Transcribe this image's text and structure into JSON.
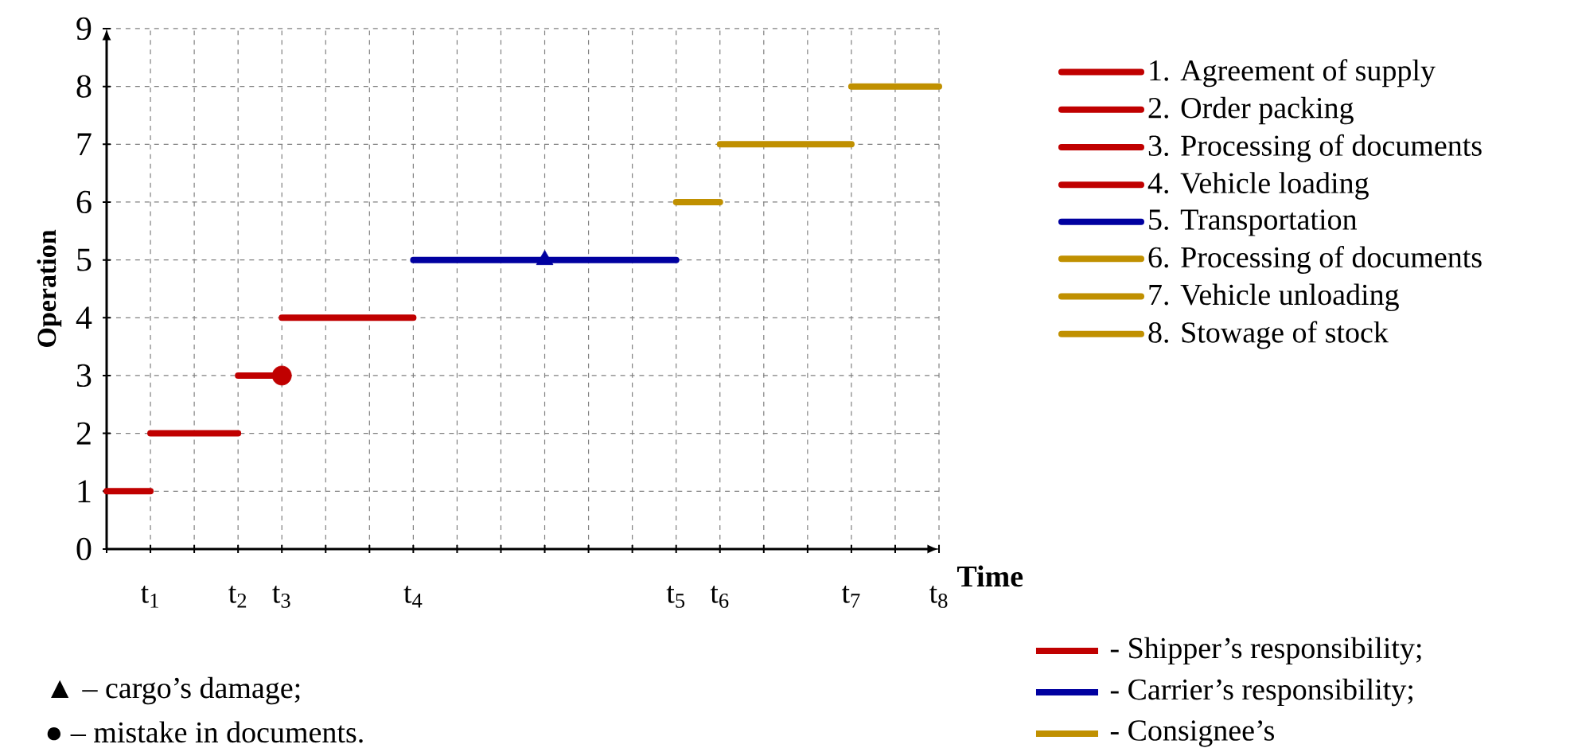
{
  "chart_data": {
    "type": "line",
    "xlabel": "Time",
    "ylabel": "Operation",
    "categories": [
      null,
      "t$_{1}$",
      null,
      "t$_{2}$",
      "t$_{3}$",
      null,
      null,
      "t$_{4}$",
      null,
      null,
      null,
      null,
      null,
      "t$_{5}$",
      "t$_{6}$",
      null,
      null,
      "t$_{7}$",
      null,
      "t$_{8}$"
    ],
    "ylim": [
      0,
      9
    ],
    "yticks": [
      0,
      1,
      2,
      3,
      4,
      5,
      6,
      7,
      8,
      9
    ],
    "grid": true,
    "legend": "right",
    "series": [
      {
        "name": "1. Agreement of supply",
        "color": "#c00000",
        "values": [
          1,
          1,
          null,
          null,
          null,
          null,
          null,
          null,
          null,
          null,
          null,
          null,
          null,
          null,
          null,
          null,
          null,
          null,
          null,
          null
        ]
      },
      {
        "name": "2. Order packing",
        "color": "#c00000",
        "values": [
          null,
          2,
          2,
          2,
          null,
          null,
          null,
          null,
          null,
          null,
          null,
          null,
          null,
          null,
          null,
          null,
          null,
          null,
          null,
          null
        ]
      },
      {
        "name": "3. Processing of documents",
        "color": "#c00000",
        "values": [
          null,
          null,
          null,
          3,
          3,
          null,
          null,
          null,
          null,
          null,
          null,
          null,
          null,
          null,
          null,
          null,
          null,
          null,
          null,
          null
        ]
      },
      {
        "name": "4. Vehicle loading",
        "color": "#c00000",
        "values": [
          null,
          null,
          null,
          null,
          4,
          4,
          4,
          4,
          null,
          null,
          null,
          null,
          null,
          null,
          null,
          null,
          null,
          null,
          null,
          null
        ]
      },
      {
        "name": "5. Transportation",
        "color": "#0000a0",
        "values": [
          null,
          null,
          null,
          null,
          null,
          null,
          null,
          5,
          5,
          5,
          5,
          5,
          5,
          5,
          null,
          null,
          null,
          null,
          null,
          null
        ]
      },
      {
        "name": "6. Processing of documents",
        "color": "#c09000",
        "values": [
          null,
          null,
          null,
          null,
          null,
          null,
          null,
          null,
          null,
          null,
          null,
          null,
          null,
          6,
          6,
          null,
          null,
          null,
          null,
          null
        ]
      },
      {
        "name": "7. Vehicle unloading",
        "color": "#c09000",
        "values": [
          null,
          null,
          null,
          null,
          null,
          null,
          null,
          null,
          null,
          null,
          null,
          null,
          null,
          null,
          7,
          7,
          7,
          7,
          null,
          null
        ]
      },
      {
        "name": "8. Stowage of stock",
        "color": "#c09000",
        "values": [
          null,
          null,
          null,
          null,
          null,
          null,
          null,
          null,
          null,
          null,
          null,
          null,
          null,
          null,
          null,
          null,
          null,
          8,
          8,
          8
        ]
      },
      {
        "type": "scatter",
        "marker": "triangle",
        "color": "#0000a0",
        "values": [
          null,
          null,
          null,
          null,
          null,
          null,
          null,
          null,
          null,
          null,
          5,
          null,
          null,
          null,
          null,
          null,
          null,
          null,
          null,
          null
        ]
      },
      {
        "type": "scatter",
        "marker": "circle",
        "color": "#c00000",
        "values": [
          null,
          null,
          null,
          null,
          3,
          null,
          null,
          null,
          null,
          null,
          null,
          null,
          null,
          null,
          null,
          null,
          null,
          null,
          null,
          null
        ]
      }
    ],
    "annotations": [
      "▲ – cargo’s damage;",
      "● – mistake in documents.",
      "- Shipper’s responsibility;",
      "- Carrier’s responsibility;",
      "- Consignee’s"
    ]
  }
}
